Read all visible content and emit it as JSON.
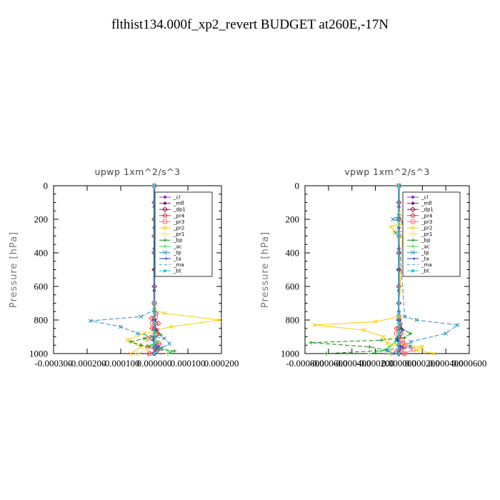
{
  "figure": {
    "title": "flthist134.000f_xp2_revert  BUDGET at260E,-17N",
    "ylabel": "Pressure [hPa]"
  },
  "chart_data": [
    {
      "type": "line",
      "title": "upwp   1xm^2/s^3",
      "ylabel": "Pressure [hPa]",
      "xlim": [
        -0.0003,
        0.0002
      ],
      "ylim": [
        1000,
        0
      ],
      "xticks": [
        -0.0003,
        -0.0002,
        -0.0001,
        0.0,
        0.0001,
        0.0002
      ],
      "xtick_labels": [
        "-0.000300",
        "-0.000200",
        "-0.000100",
        "0.000000",
        "0.000100",
        "0.000200"
      ],
      "yticks": [
        0,
        200,
        400,
        600,
        800,
        1000
      ],
      "ytick_labels": [
        "0",
        "200",
        "400",
        "600",
        "800",
        "1000"
      ],
      "legend_position": "top-right",
      "series": [
        {
          "name": "_cl",
          "color": "#9933cc",
          "marker": "dot",
          "dash": "",
          "x": [
            0,
            0,
            0,
            0,
            0,
            0,
            0,
            0,
            0
          ],
          "y": [
            0,
            125,
            250,
            375,
            500,
            625,
            750,
            875,
            1000
          ]
        },
        {
          "name": "_mfl",
          "color": "#8b1a89",
          "marker": "dot",
          "dash": "",
          "x": [
            0,
            0,
            0,
            0,
            0,
            0,
            0,
            0,
            0
          ],
          "y": [
            0,
            125,
            250,
            375,
            500,
            625,
            750,
            875,
            1000
          ]
        },
        {
          "name": "_dp1",
          "color": "#a0104c",
          "marker": "diamond",
          "dash": "",
          "x": [
            0,
            0,
            0,
            0,
            0,
            0,
            0,
            0,
            0,
            0,
            0,
            0,
            0
          ],
          "y": [
            0,
            100,
            200,
            300,
            400,
            500,
            600,
            700,
            800,
            850,
            900,
            950,
            1000
          ]
        },
        {
          "name": "_pr4",
          "color": "#e0303a",
          "marker": "diamond",
          "dash": "",
          "x": [
            0,
            0,
            0,
            5e-06,
            -8e-06,
            1.2e-05,
            -6e-06,
            1e-05,
            -2e-05,
            1.5e-05,
            -2e-05,
            1e-05,
            -1.5e-05
          ],
          "y": [
            0,
            300,
            700,
            760,
            790,
            820,
            850,
            880,
            910,
            940,
            960,
            980,
            1000
          ]
        },
        {
          "name": "_pr3",
          "color": "#ff6f7a",
          "marker": "square",
          "dash": "",
          "x": [
            0,
            0,
            4e-06,
            -6e-06,
            8e-06,
            -5e-06,
            6e-06,
            2e-05,
            -1.5e-05
          ],
          "y": [
            0,
            700,
            780,
            820,
            860,
            900,
            940,
            970,
            1000
          ]
        },
        {
          "name": "_pr2",
          "color": "#ffcc00",
          "marker": "x",
          "dash": "",
          "x": [
            0,
            0,
            3e-05,
            0.000195,
            5e-05,
            -3e-05,
            -8e-05,
            -4e-05,
            -7e-05
          ],
          "y": [
            0,
            740,
            760,
            800,
            840,
            880,
            920,
            960,
            1000
          ]
        },
        {
          "name": "_pr1",
          "color": "#f5e08a",
          "marker": "circle",
          "dash": "",
          "x": [
            0,
            0,
            -2e-05,
            -4e-05,
            -2e-05,
            -5e-05
          ],
          "y": [
            0,
            880,
            920,
            950,
            975,
            1000
          ]
        },
        {
          "name": "_bp",
          "color": "#118811",
          "marker": "plus",
          "dash": "6,3",
          "x": [
            0,
            0,
            2e-05,
            -3e-05,
            -7e-05,
            -4e-05,
            1e-05,
            6e-05,
            4e-05
          ],
          "y": [
            0,
            860,
            890,
            910,
            930,
            950,
            970,
            985,
            1000
          ]
        },
        {
          "name": "_ac",
          "color": "#44dd44",
          "marker": "plus",
          "dash": "",
          "x": [
            0,
            0,
            1e-05,
            -1e-05,
            2e-05,
            5e-05,
            4e-05
          ],
          "y": [
            0,
            900,
            930,
            950,
            970,
            990,
            1000
          ]
        },
        {
          "name": "_tp",
          "color": "#2a8fbd",
          "marker": "x",
          "dash": "6,3",
          "x": [
            0,
            0,
            -4e-05,
            -0.00019,
            -0.0001,
            -5e-05,
            3e-05,
            4.5e-05,
            2e-05,
            0
          ],
          "y": [
            0,
            740,
            780,
            805,
            840,
            880,
            910,
            940,
            970,
            1000
          ]
        },
        {
          "name": "_ta",
          "color": "#1a3cc8",
          "marker": "arrow",
          "dash": "",
          "x": [
            0,
            0,
            5e-06,
            -5e-06,
            8e-06,
            0
          ],
          "y": [
            0,
            800,
            860,
            920,
            960,
            1000
          ]
        },
        {
          "name": "_ma",
          "color": "#44aacc",
          "marker": "none",
          "dash": "4,3",
          "x": [
            0,
            0,
            0
          ],
          "y": [
            0,
            500,
            1000
          ]
        },
        {
          "name": "_bt",
          "color": "#22cccc",
          "marker": "dot",
          "dash": "",
          "x": [
            0,
            0,
            0,
            0,
            0,
            0,
            0
          ],
          "y": [
            0,
            700,
            760,
            820,
            880,
            940,
            1000
          ]
        }
      ]
    },
    {
      "type": "line",
      "title": "vpwp   1xm^2/s^3",
      "ylabel": "Pressure [hPa]",
      "xlim": [
        -0.0008,
        0.0006
      ],
      "ylim": [
        1000,
        0
      ],
      "xticks": [
        -0.0008,
        -0.0006,
        -0.0004,
        -0.0002,
        0.0,
        0.0002,
        0.0004,
        0.0006
      ],
      "xtick_labels": [
        "-0.000800",
        "-0.000600",
        "-0.000400",
        "-0.000200",
        "0.000000",
        "0.000200",
        "0.000400",
        "0.000600"
      ],
      "yticks": [
        0,
        200,
        400,
        600,
        800,
        1000
      ],
      "ytick_labels": [
        "0",
        "200",
        "400",
        "600",
        "800",
        "1000"
      ],
      "legend_position": "top-right",
      "series": [
        {
          "name": "_cl",
          "color": "#9933cc",
          "marker": "dot",
          "dash": "",
          "x": [
            0,
            0,
            0,
            0,
            0,
            0,
            0,
            0,
            0
          ],
          "y": [
            0,
            125,
            250,
            375,
            500,
            625,
            750,
            875,
            1000
          ]
        },
        {
          "name": "_mfl",
          "color": "#8b1a89",
          "marker": "dot",
          "dash": "",
          "x": [
            0,
            0,
            0,
            0,
            0,
            0,
            0,
            0,
            0
          ],
          "y": [
            0,
            125,
            250,
            375,
            500,
            625,
            750,
            875,
            1000
          ]
        },
        {
          "name": "_dp1",
          "color": "#a0104c",
          "marker": "diamond",
          "dash": "",
          "x": [
            0,
            0,
            0,
            0,
            0,
            0,
            0,
            0,
            0,
            0,
            0,
            0,
            0
          ],
          "y": [
            0,
            100,
            200,
            300,
            400,
            500,
            600,
            700,
            800,
            850,
            900,
            950,
            1000
          ]
        },
        {
          "name": "_pr4",
          "color": "#e0303a",
          "marker": "diamond",
          "dash": "",
          "x": [
            0,
            0,
            0,
            1e-05,
            -2e-05,
            2e-05,
            -1e-05,
            3e-05,
            5e-05,
            2e-05,
            -2e-05,
            4e-05
          ],
          "y": [
            0,
            300,
            780,
            820,
            850,
            880,
            910,
            940,
            960,
            975,
            990,
            1000
          ]
        },
        {
          "name": "_pr3",
          "color": "#ff6f7a",
          "marker": "square",
          "dash": "",
          "x": [
            0,
            0,
            1e-05,
            -2e-05,
            3e-05,
            8e-05,
            0.00012,
            5e-05
          ],
          "y": [
            0,
            780,
            830,
            880,
            920,
            950,
            975,
            1000
          ]
        },
        {
          "name": "_pr2",
          "color": "#ffcc00",
          "marker": "x",
          "dash": "",
          "x": [
            0,
            0,
            6e-05,
            3e-05,
            -7e-05,
            -4e-05,
            3e-05,
            0,
            -0.0002,
            -0.00072,
            -0.0003,
            -0.00013,
            -0.0001,
            0.0002,
            0.00015,
            0.0003
          ],
          "y": [
            0,
            160,
            200,
            225,
            245,
            270,
            300,
            780,
            810,
            830,
            860,
            900,
            940,
            960,
            980,
            1000
          ]
        },
        {
          "name": "_pr1",
          "color": "#f5e08a",
          "marker": "circle",
          "dash": "",
          "x": [
            0,
            0,
            4e-05,
            -2e-05,
            5e-05,
            0,
            0,
            -0.0001,
            -5e-05,
            -8e-05
          ],
          "y": [
            0,
            170,
            200,
            230,
            260,
            300,
            880,
            920,
            960,
            1000
          ]
        },
        {
          "name": "_bp",
          "color": "#118811",
          "marker": "plus",
          "dash": "6,3",
          "x": [
            0,
            0,
            2e-05,
            0.0001,
            5e-05,
            -0.00015,
            -0.00075,
            -0.00025,
            -0.0001,
            -0.00062
          ],
          "y": [
            0,
            820,
            850,
            880,
            905,
            920,
            935,
            960,
            980,
            1000
          ]
        },
        {
          "name": "_ac",
          "color": "#44dd44",
          "marker": "plus",
          "dash": "",
          "x": [
            0,
            0,
            -3e-05,
            -8e-05,
            -0.00015,
            -0.00025
          ],
          "y": [
            0,
            900,
            930,
            960,
            985,
            1000
          ]
        },
        {
          "name": "_tp",
          "color": "#2a8fbd",
          "marker": "x",
          "dash": "6,3",
          "x": [
            0,
            0,
            -5e-05,
            4e-05,
            0.00015,
            -3e-05,
            0,
            5e-05,
            0.00015,
            0.0005,
            0.0004,
            0.0001,
            0.0001,
            -0.0001,
            -5e-05
          ],
          "y": [
            0,
            180,
            200,
            220,
            250,
            280,
            300,
            780,
            800,
            830,
            880,
            930,
            960,
            980,
            1000
          ]
        },
        {
          "name": "_ta",
          "color": "#1a3cc8",
          "marker": "arrow",
          "dash": "",
          "x": [
            0,
            0,
            3e-05,
            -2e-05,
            2e-05,
            0
          ],
          "y": [
            0,
            800,
            860,
            920,
            960,
            1000
          ]
        },
        {
          "name": "_ma",
          "color": "#44aacc",
          "marker": "none",
          "dash": "4,3",
          "x": [
            0,
            0,
            0
          ],
          "y": [
            0,
            500,
            1000
          ]
        },
        {
          "name": "_bt",
          "color": "#22cccc",
          "marker": "dot",
          "dash": "",
          "x": [
            0,
            0,
            0,
            0,
            0,
            0,
            0
          ],
          "y": [
            0,
            700,
            760,
            820,
            880,
            940,
            1000
          ]
        }
      ]
    }
  ]
}
